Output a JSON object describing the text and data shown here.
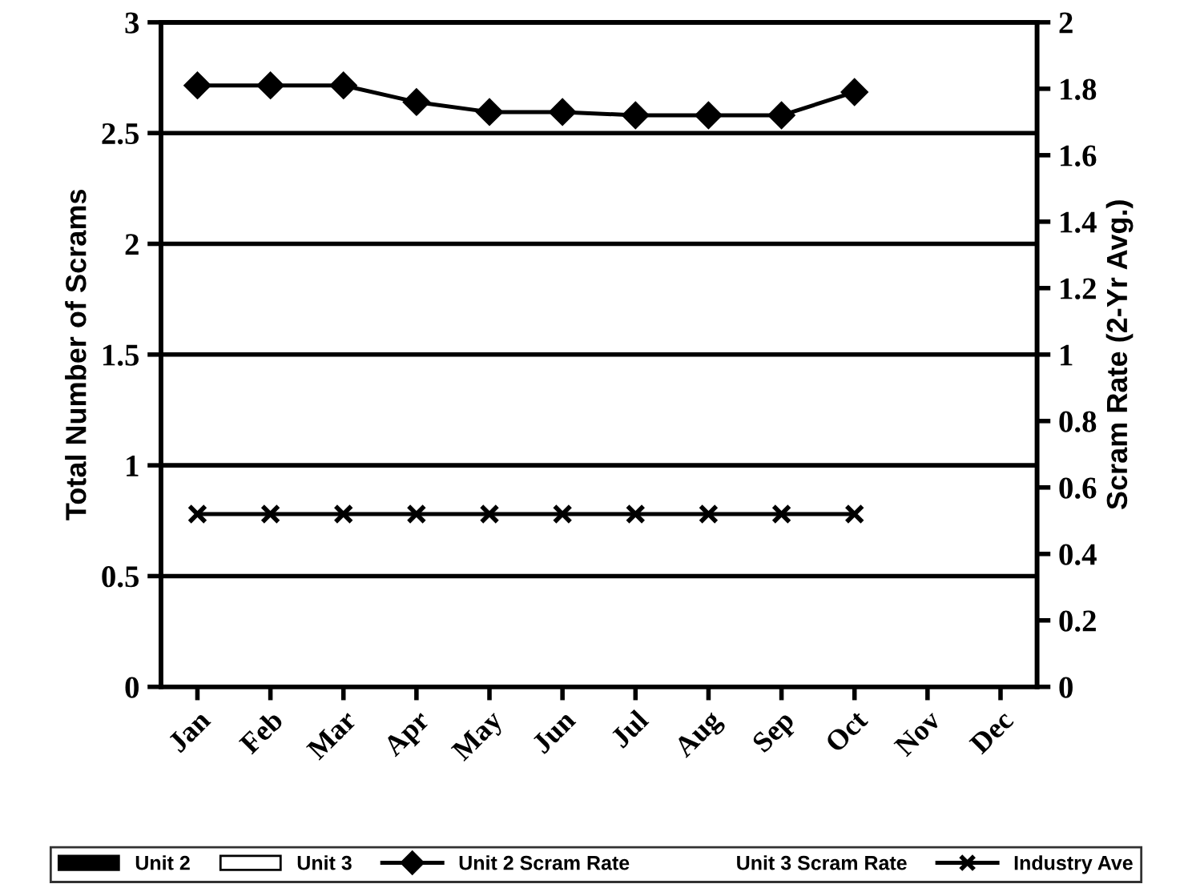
{
  "chart_data": {
    "type": "bar",
    "ylabel": "Total Number of Scrams",
    "y2label": "Scram Rate (2-Yr Avg.)",
    "categories": [
      "Jan",
      "Feb",
      "Mar",
      "Apr",
      "May",
      "Jun",
      "Jul",
      "Aug",
      "Sep",
      "Oct",
      "Nov",
      "Dec"
    ],
    "ylim": [
      0,
      3
    ],
    "yticks": [
      0,
      0.5,
      1,
      1.5,
      2,
      2.5,
      3
    ],
    "y2lim": [
      0,
      2
    ],
    "y2ticks": [
      0,
      0.2,
      0.4,
      0.6,
      0.8,
      1,
      1.2,
      1.4,
      1.6,
      1.8,
      2
    ],
    "grid": "y",
    "legend": "bottom",
    "series": [
      {
        "name": "Unit 2",
        "color": "#000000",
        "values": [
          null,
          null,
          null,
          null,
          null,
          null,
          null,
          null,
          null,
          null,
          null,
          null
        ]
      },
      {
        "name": "Unit 3",
        "color": "#ffffff",
        "values": [
          null,
          null,
          null,
          null,
          null,
          null,
          null,
          null,
          null,
          null,
          null,
          null
        ]
      },
      {
        "name": "Unit 2 Scram Rate",
        "type": "line",
        "axis": "y2",
        "marker": "diamond",
        "color": "#000000",
        "values": [
          1.81,
          1.81,
          1.81,
          1.76,
          1.73,
          1.73,
          1.72,
          1.72,
          1.72,
          1.79,
          null,
          null
        ]
      },
      {
        "name": "Unit 3 Scram Rate",
        "type": "line",
        "axis": "y2",
        "values": [
          null,
          null,
          null,
          null,
          null,
          null,
          null,
          null,
          null,
          null,
          null,
          null
        ]
      },
      {
        "name": "Industry Ave",
        "type": "line",
        "axis": "y2",
        "marker": "cross",
        "color": "#000000",
        "values": [
          0.52,
          0.52,
          0.52,
          0.52,
          0.52,
          0.52,
          0.52,
          0.52,
          0.52,
          0.52,
          null,
          null
        ]
      }
    ]
  }
}
